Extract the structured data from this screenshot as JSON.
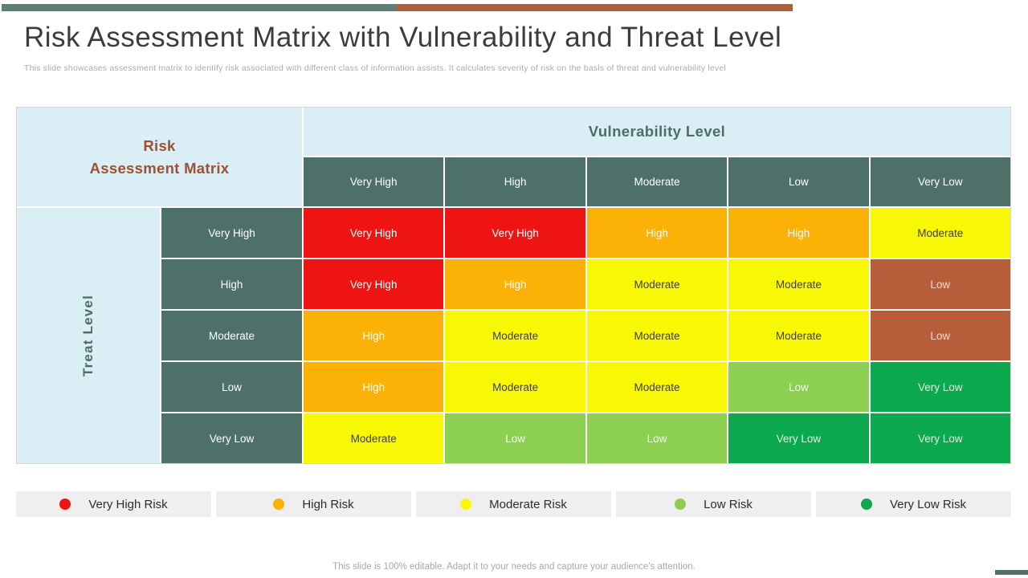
{
  "slide": {
    "title": "Risk Assessment Matrix with Vulnerability and Threat Level",
    "subtitle": "This slide showcases assessment matrix to identify risk associated with different class of information assists. It calculates severity of risk on the basis of threat and vulnerability level",
    "footer": "This slide is 100% editable. Adapt it to your needs and capture your audience's attention."
  },
  "palette": {
    "accent_teal": "#5a8077",
    "accent_rust": "#b2603c",
    "header_teal_bg": "#4d7168",
    "light_blue_bg": "#d9eef5",
    "corner_text_rust": "#a14f33",
    "axis_text_teal": "#4b6f64"
  },
  "risk_styles": {
    "very-high": {
      "bg": "#ee1414",
      "text": "#ffffff"
    },
    "high": {
      "bg": "#fbb105",
      "text": "#fdfdfb"
    },
    "moderate": {
      "bg": "#f8f804",
      "text": "#3f3f3f"
    },
    "low-brown": {
      "bg": "#b75d39",
      "text": "#f5dcd0"
    },
    "low-green": {
      "bg": "#8dcf50",
      "text": "#f4fbec"
    },
    "very-low": {
      "bg": "#0da94f",
      "text": "#d9f2e3"
    }
  },
  "matrix": {
    "corner_label": "Risk\nAssessment Matrix",
    "column_axis_label": "Vulnerability Level",
    "row_axis_label": "Treat Level",
    "column_headers": [
      "Very High",
      "High",
      "Moderate",
      "Low",
      "Very Low"
    ],
    "rows": [
      {
        "header": "Very High",
        "cells": [
          {
            "label": "Very High",
            "risk": "very-high"
          },
          {
            "label": "Very High",
            "risk": "very-high"
          },
          {
            "label": "High",
            "risk": "high"
          },
          {
            "label": "High",
            "risk": "high"
          },
          {
            "label": "Moderate",
            "risk": "moderate"
          }
        ]
      },
      {
        "header": "High",
        "cells": [
          {
            "label": "Very High",
            "risk": "very-high"
          },
          {
            "label": "High",
            "risk": "high"
          },
          {
            "label": "Moderate",
            "risk": "moderate"
          },
          {
            "label": "Moderate",
            "risk": "moderate"
          },
          {
            "label": "Low",
            "risk": "low-brown"
          }
        ]
      },
      {
        "header": "Moderate",
        "cells": [
          {
            "label": "High",
            "risk": "high"
          },
          {
            "label": "Moderate",
            "risk": "moderate"
          },
          {
            "label": "Moderate",
            "risk": "moderate"
          },
          {
            "label": "Moderate",
            "risk": "moderate"
          },
          {
            "label": "Low",
            "risk": "low-brown"
          }
        ]
      },
      {
        "header": "Low",
        "cells": [
          {
            "label": "High",
            "risk": "high"
          },
          {
            "label": "Moderate",
            "risk": "moderate"
          },
          {
            "label": "Moderate",
            "risk": "moderate"
          },
          {
            "label": "Low",
            "risk": "low-green"
          },
          {
            "label": "Very Low",
            "risk": "very-low"
          }
        ]
      },
      {
        "header": "Very Low",
        "cells": [
          {
            "label": "Moderate",
            "risk": "moderate"
          },
          {
            "label": "Low",
            "risk": "low-green"
          },
          {
            "label": "Low",
            "risk": "low-green"
          },
          {
            "label": "Very Low",
            "risk": "very-low"
          },
          {
            "label": "Very Low",
            "risk": "very-low"
          }
        ]
      }
    ]
  },
  "legend": [
    {
      "label": "Very High Risk",
      "color": "#ee1414"
    },
    {
      "label": "High Risk",
      "color": "#fbb105"
    },
    {
      "label": "Moderate Risk",
      "color": "#f8f804"
    },
    {
      "label": "Low Risk",
      "color": "#8dcf50"
    },
    {
      "label": "Very Low Risk",
      "color": "#0da94f"
    }
  ]
}
